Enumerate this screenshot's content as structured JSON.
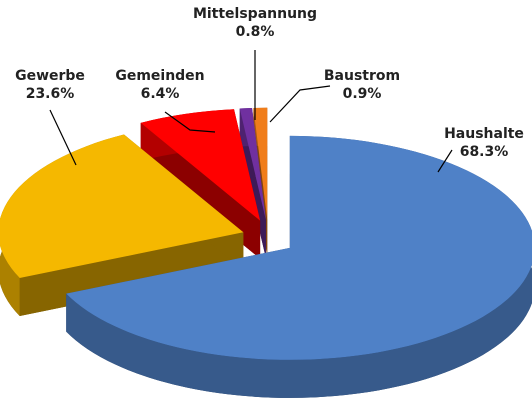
{
  "chart_data": {
    "type": "pie",
    "categories": [
      "Haushalte",
      "Gewerbe",
      "Gemeinden",
      "Mittelspannung",
      "Baustrom"
    ],
    "values": [
      68.3,
      23.6,
      6.4,
      0.8,
      0.9
    ],
    "value_labels": [
      "68.3%",
      "23.6%",
      "6.4%",
      "0.8%",
      "0.9%"
    ],
    "colors": [
      "#4f81c7",
      "#f5b800",
      "#ff0000",
      "#7030a0",
      "#f07d1a"
    ]
  }
}
